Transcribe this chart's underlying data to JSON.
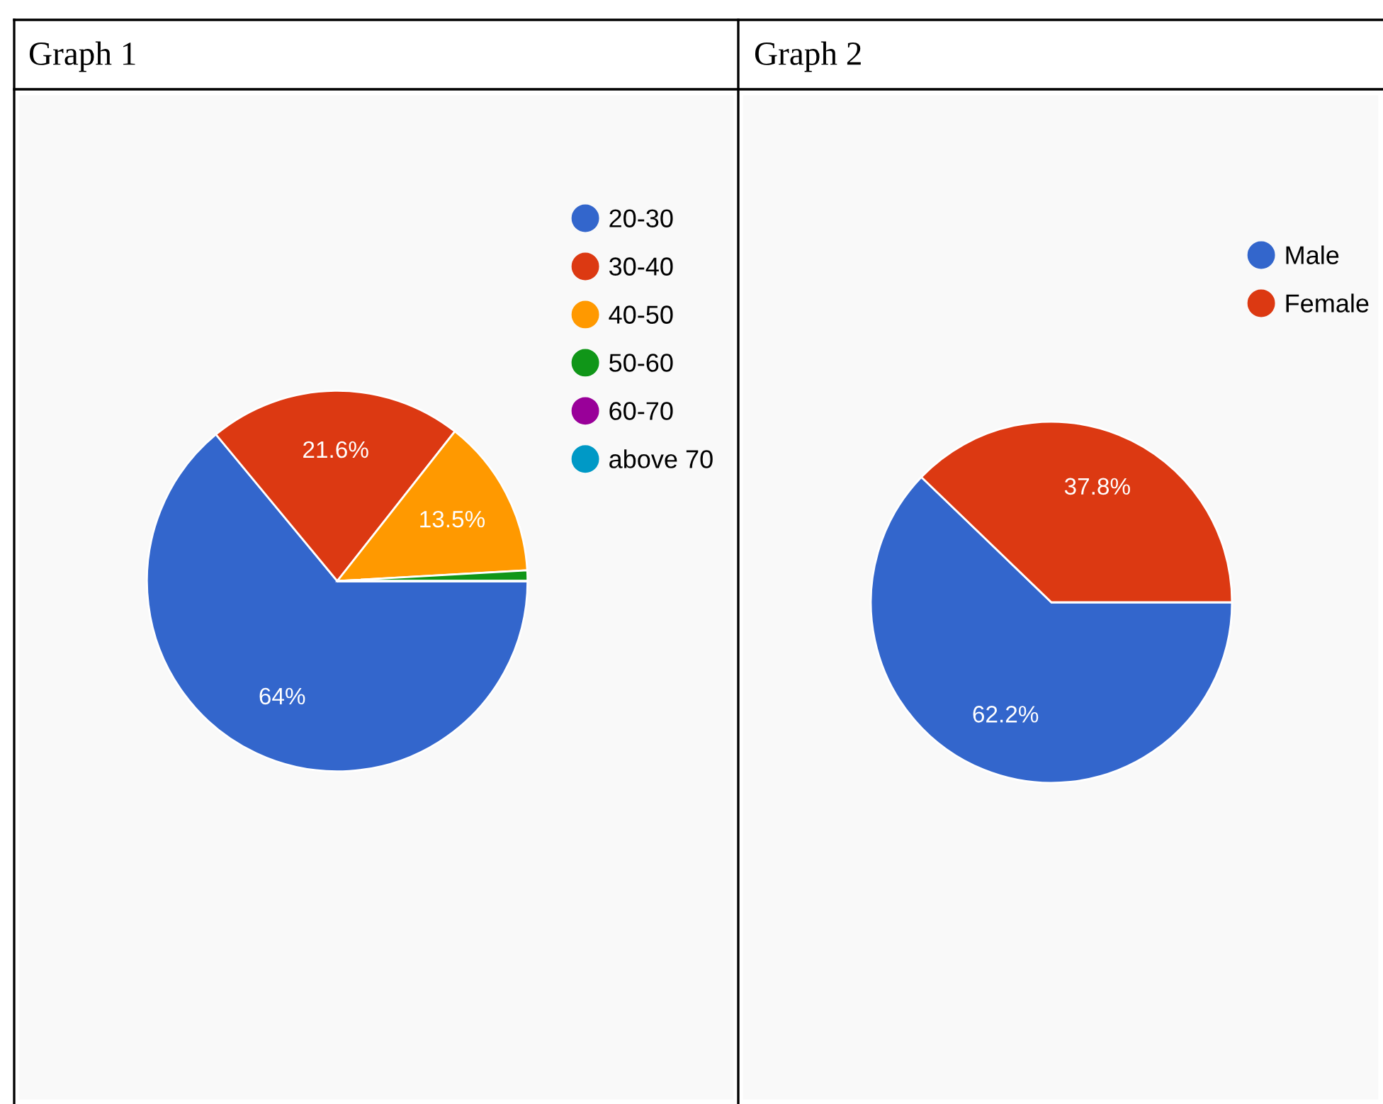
{
  "chart_data": [
    {
      "type": "pie",
      "title": "Graph 1",
      "categories": [
        "20-30",
        "30-40",
        "40-50",
        "50-60",
        "60-70",
        "above 70"
      ],
      "values": [
        64,
        21.6,
        13.5,
        0.9,
        0,
        0
      ],
      "colors": [
        "#3366cc",
        "#dc3912",
        "#ff9900",
        "#109618",
        "#990099",
        "#0099c6"
      ],
      "value_labels": [
        "64%",
        "21.6%",
        "13.5%",
        null,
        null,
        null
      ],
      "legend": "top right"
    },
    {
      "type": "pie",
      "title": "Graph 2",
      "categories": [
        "Male",
        "Female"
      ],
      "values": [
        62.2,
        37.8
      ],
      "colors": [
        "#3366cc",
        "#dc3912"
      ],
      "value_labels": [
        "62.2%",
        "37.8%"
      ],
      "legend": "top right"
    }
  ]
}
